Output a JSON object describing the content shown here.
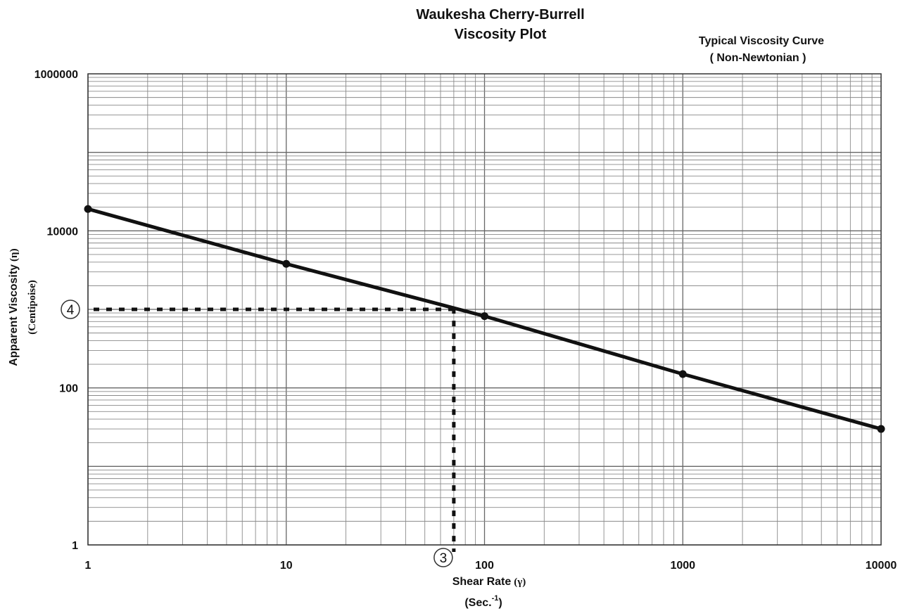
{
  "chart_data": {
    "type": "line",
    "title": "Waukesha Cherry-Burrell",
    "subtitle": "Viscosity Plot",
    "annotation": {
      "line1": "Typical Viscosity Curve",
      "line2": "( Non-Newtonian )"
    },
    "xlabel": "Shear Rate",
    "xlabel_symbol": "(γ)",
    "xlabel_units_prefix": "(Sec.",
    "xlabel_units_exp": "-1",
    "xlabel_units_suffix": ")",
    "ylabel": "Apparent Viscosity",
    "ylabel_symbol": "(η)",
    "ylabel_units": "(Centipoise)",
    "x_scale": "log",
    "y_scale": "log",
    "xlim": [
      1,
      10000
    ],
    "ylim": [
      1,
      1000000
    ],
    "x_ticks": [
      1,
      10,
      100,
      1000,
      10000
    ],
    "x_tick_labels": [
      "1",
      "10",
      "100",
      "1000",
      "10000"
    ],
    "y_ticks": [
      1,
      100,
      10000,
      1000000
    ],
    "y_tick_labels": [
      "1",
      "100",
      "10000",
      "1000000"
    ],
    "grid": true,
    "series": [
      {
        "x": [
          1,
          10,
          100,
          1000,
          10000
        ],
        "y": [
          19000,
          3800,
          820,
          150,
          30
        ],
        "color": "#111111"
      }
    ],
    "reference_lines": [
      {
        "label": "4",
        "axis": "y",
        "value": 1000
      },
      {
        "label": "3",
        "axis": "x",
        "value": 70
      }
    ]
  }
}
